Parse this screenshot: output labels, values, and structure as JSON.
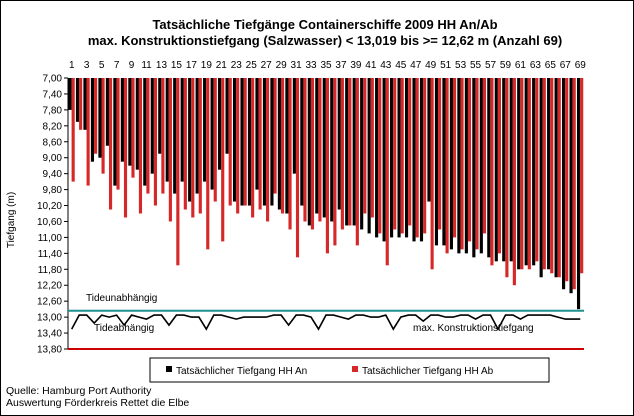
{
  "chart_data": {
    "type": "bar",
    "title": "Tatsächliche Tiefgänge Containerschiffe  2009 HH An/Ab",
    "subtitle": "max. Konstruktionstiefgang  (Salzwasser)  < 13,019 bis >= 12,62 m (Anzahl 69)",
    "ylabel": "Tiefgang (m)",
    "xlabel": "",
    "y_axis_inverted": true,
    "ylim": [
      7.0,
      13.8
    ],
    "ytick_labels": [
      "7,00",
      "7,40",
      "7,80",
      "8,20",
      "8,60",
      "9,00",
      "9,40",
      "9,80",
      "10,20",
      "10,60",
      "11,00",
      "11,40",
      "11,80",
      "12,20",
      "12,60",
      "13,00",
      "13,40",
      "13,80"
    ],
    "yticks": [
      7.0,
      7.4,
      7.8,
      8.2,
      8.6,
      9.0,
      9.4,
      9.8,
      10.2,
      10.6,
      11.0,
      11.4,
      11.8,
      12.2,
      12.6,
      13.0,
      13.4,
      13.8
    ],
    "categories": [
      1,
      2,
      3,
      4,
      5,
      6,
      7,
      8,
      9,
      10,
      11,
      12,
      13,
      14,
      15,
      16,
      17,
      18,
      19,
      20,
      21,
      22,
      23,
      24,
      25,
      26,
      27,
      28,
      29,
      30,
      31,
      32,
      33,
      34,
      35,
      36,
      37,
      38,
      39,
      40,
      41,
      42,
      43,
      44,
      45,
      46,
      47,
      48,
      49,
      50,
      51,
      52,
      53,
      54,
      55,
      56,
      57,
      58,
      59,
      60,
      61,
      62,
      63,
      64,
      65,
      66,
      67,
      68,
      69
    ],
    "xtick_labels": [
      "1",
      "3",
      "5",
      "7",
      "9",
      "11",
      "13",
      "15",
      "17",
      "19",
      "21",
      "23",
      "25",
      "27",
      "29",
      "31",
      "33",
      "35",
      "37",
      "39",
      "41",
      "43",
      "45",
      "47",
      "49",
      "51",
      "53",
      "55",
      "57",
      "59",
      "61",
      "63",
      "65",
      "67",
      "69"
    ],
    "series": [
      {
        "name": "Tatsächlicher Tiefgang HH An",
        "color": "#000000",
        "values": [
          7.8,
          8.1,
          8.3,
          9.1,
          9.0,
          8.7,
          9.7,
          9.1,
          9.2,
          9.3,
          9.7,
          9.4,
          8.9,
          9.6,
          9.9,
          9.6,
          10.1,
          9.9,
          9.6,
          9.8,
          9.3,
          8.9,
          10.1,
          10.2,
          10.2,
          9.8,
          10.2,
          10.2,
          10.3,
          10.4,
          9.4,
          10.2,
          10.7,
          10.4,
          10.5,
          10.6,
          10.3,
          10.7,
          10.7,
          10.8,
          10.9,
          11.0,
          11.1,
          11.0,
          11.0,
          11.0,
          11.1,
          11.1,
          10.1,
          11.2,
          11.2,
          11.3,
          11.4,
          11.4,
          11.5,
          11.4,
          11.5,
          11.6,
          11.6,
          11.6,
          11.8,
          11.7,
          11.7,
          12.0,
          11.8,
          12.0,
          12.3,
          12.4,
          12.8
        ]
      },
      {
        "name": "Tatsächlicher Tiefgang HH Ab",
        "color": "#d62828",
        "values": [
          9.6,
          8.3,
          9.7,
          8.9,
          9.4,
          10.3,
          9.8,
          10.5,
          9.5,
          10.4,
          9.9,
          10.2,
          9.9,
          10.6,
          11.7,
          10.3,
          10.5,
          10.4,
          11.3,
          10.1,
          11.1,
          10.2,
          10.4,
          10.2,
          10.5,
          10.3,
          10.6,
          9.9,
          10.4,
          10.8,
          11.5,
          10.6,
          10.8,
          10.6,
          11.4,
          11.2,
          10.8,
          10.7,
          11.2,
          10.4,
          10.5,
          10.9,
          11.7,
          10.8,
          10.9,
          10.7,
          11.0,
          10.9,
          11.8,
          10.8,
          11.4,
          11.0,
          11.3,
          11.1,
          11.3,
          10.9,
          11.7,
          11.4,
          12.0,
          12.2,
          11.8,
          11.8,
          11.6,
          11.8,
          11.9,
          12.0,
          12.1,
          12.3,
          11.9
        ]
      },
      {
        "name": "max. Konstruktionstiefgang",
        "color": "#000000",
        "values": [
          13.3,
          12.95,
          12.95,
          13.15,
          12.95,
          13.0,
          12.95,
          13.2,
          12.95,
          13.0,
          13.05,
          12.95,
          12.95,
          13.2,
          12.95,
          12.95,
          13.0,
          13.0,
          13.3,
          12.95,
          12.95,
          13.0,
          13.05,
          13.0,
          13.0,
          13.0,
          13.0,
          12.95,
          12.95,
          13.2,
          12.95,
          12.95,
          13.0,
          13.3,
          12.95,
          12.95,
          13.0,
          13.05,
          12.95,
          12.95,
          13.0,
          13.0,
          12.95,
          13.3,
          13.0,
          12.95,
          12.95,
          13.1,
          12.95,
          12.95,
          13.0,
          13.0,
          12.95,
          12.95,
          13.05,
          12.95,
          12.95,
          13.3,
          12.95,
          12.95,
          13.05,
          12.95,
          12.95,
          12.95,
          12.95,
          13.0,
          13.05,
          13.05,
          13.05
        ]
      }
    ],
    "reference_lines": [
      {
        "value": 12.84,
        "color": "#1f8f8f",
        "label": "Tideunabhängig"
      },
      {
        "value": 13.8,
        "color": "#cc0000",
        "label": ""
      }
    ],
    "annotations": [
      "Tideunabhängig",
      "Tideabhängig",
      "max. Konstruktionstiefgang"
    ],
    "legend_position": "bottom",
    "legend_entries": [
      "Tatsächlicher Tiefgang HH An",
      "Tatsächlicher Tiefgang HH Ab"
    ]
  },
  "footer": {
    "source": "Quelle: Hamburg Port Authority",
    "author": "Auswertung Förderkreis Rettet die Elbe"
  }
}
